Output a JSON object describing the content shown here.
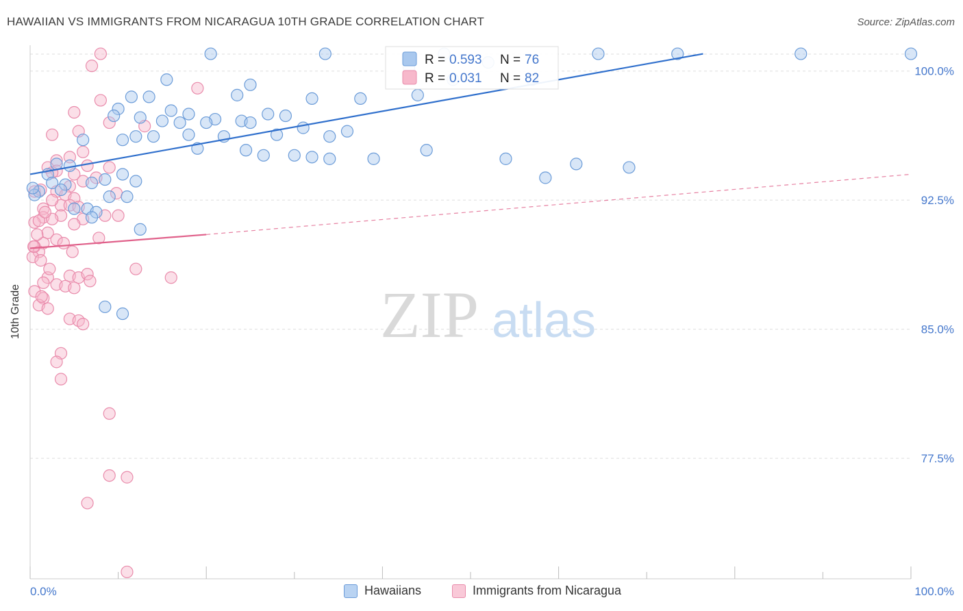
{
  "header": {
    "title": "HAWAIIAN VS IMMIGRANTS FROM NICARAGUA 10TH GRADE CORRELATION CHART",
    "source": "Source: ZipAtlas.com"
  },
  "watermark": {
    "zip": "ZIP",
    "atlas": "atlas"
  },
  "colors": {
    "blue_fill": "#a9c8ee",
    "blue_stroke": "#6a9bd8",
    "blue_line": "#2f6fcc",
    "pink_fill": "#f7b8cb",
    "pink_stroke": "#e98bab",
    "pink_line": "#e0608a",
    "tick_text": "#4477cc",
    "grid": "#dddddd"
  },
  "legend": {
    "rows": [
      {
        "r_label": "R =",
        "r_value": "0.593",
        "n_label": "N =",
        "n_value": "76"
      },
      {
        "r_label": "R =",
        "r_value": "0.031",
        "n_label": "N =",
        "n_value": "82"
      }
    ]
  },
  "bottom_legend": [
    "Hawaiians",
    "Immigrants from Nicaragua"
  ],
  "chart_data": {
    "type": "scatter",
    "title": "HAWAIIAN VS IMMIGRANTS FROM NICARAGUA 10TH GRADE CORRELATION CHART",
    "xlabel": "",
    "ylabel": "10th Grade",
    "xlim": [
      0,
      100
    ],
    "ylim": [
      70.5,
      101.5
    ],
    "x_tick_labels": [
      "0.0%",
      "100.0%"
    ],
    "y_ticks": [
      77.5,
      85.0,
      92.5,
      100.0
    ],
    "y_tick_labels": [
      "77.5%",
      "85.0%",
      "92.5%",
      "100.0%"
    ],
    "grid": true,
    "legend_position": "top-center",
    "series": [
      {
        "name": "Hawaiians",
        "color": "#a9c8ee",
        "R": 0.593,
        "N": 76,
        "trend": {
          "x": [
            0,
            76.4
          ],
          "y": [
            94.0,
            101.0
          ],
          "style": "solid"
        },
        "points": [
          [
            20.5,
            101
          ],
          [
            33.5,
            101
          ],
          [
            47,
            101
          ],
          [
            64.5,
            101
          ],
          [
            73.5,
            101
          ],
          [
            87.5,
            101
          ],
          [
            100,
            101
          ],
          [
            43,
            100.2
          ],
          [
            52,
            100.5
          ],
          [
            48,
            99.5
          ],
          [
            57,
            99.5
          ],
          [
            15.5,
            99.5
          ],
          [
            25,
            99.2
          ],
          [
            11.5,
            98.5
          ],
          [
            13.5,
            98.5
          ],
          [
            23.5,
            98.6
          ],
          [
            37.5,
            98.4
          ],
          [
            44,
            98.6
          ],
          [
            32,
            98.4
          ],
          [
            10,
            97.8
          ],
          [
            16,
            97.7
          ],
          [
            18,
            97.5
          ],
          [
            9.5,
            97.4
          ],
          [
            12.5,
            97.3
          ],
          [
            15,
            97.1
          ],
          [
            21,
            97.2
          ],
          [
            24,
            97.1
          ],
          [
            27,
            97.5
          ],
          [
            29,
            97.4
          ],
          [
            25,
            97
          ],
          [
            20,
            97
          ],
          [
            17,
            97
          ],
          [
            31,
            96.7
          ],
          [
            22,
            96.2
          ],
          [
            18,
            96.3
          ],
          [
            14,
            96.2
          ],
          [
            12,
            96.2
          ],
          [
            28,
            96.3
          ],
          [
            34,
            96.2
          ],
          [
            36,
            96.5
          ],
          [
            6,
            96.0
          ],
          [
            10.5,
            96
          ],
          [
            19,
            95.5
          ],
          [
            24.5,
            95.4
          ],
          [
            26.5,
            95.1
          ],
          [
            30,
            95.1
          ],
          [
            32,
            95
          ],
          [
            34,
            94.9
          ],
          [
            39,
            94.9
          ],
          [
            45,
            95.4
          ],
          [
            54,
            94.9
          ],
          [
            62,
            94.6
          ],
          [
            68,
            94.4
          ],
          [
            58.5,
            93.8
          ],
          [
            3,
            94.6
          ],
          [
            4.5,
            94.5
          ],
          [
            8.5,
            93.7
          ],
          [
            10.5,
            94.0
          ],
          [
            2,
            94
          ],
          [
            2.5,
            93.5
          ],
          [
            4,
            93.4
          ],
          [
            7,
            93.5
          ],
          [
            12,
            93.6
          ],
          [
            3.5,
            93.1
          ],
          [
            1,
            93.0
          ],
          [
            0.5,
            92.8
          ],
          [
            9,
            92.7
          ],
          [
            11,
            92.7
          ],
          [
            5,
            92.0
          ],
          [
            6.5,
            92
          ],
          [
            7.5,
            91.8
          ],
          [
            7,
            91.5
          ],
          [
            12.5,
            90.8
          ],
          [
            8.5,
            86.3
          ],
          [
            10.5,
            85.9
          ],
          [
            0.3,
            93.2
          ]
        ]
      },
      {
        "name": "Immigrants from Nicaragua",
        "color": "#f7b8cb",
        "R": 0.031,
        "N": 82,
        "trend": {
          "x": [
            0,
            20
          ],
          "y": [
            89.7,
            90.5
          ],
          "style": "solid"
        },
        "trend_ext": {
          "x": [
            20,
            100
          ],
          "y": [
            90.5,
            94.0
          ],
          "style": "dashed"
        },
        "points": [
          [
            8,
            101
          ],
          [
            7,
            100.3
          ],
          [
            19,
            99
          ],
          [
            8,
            98.3
          ],
          [
            5,
            97.6
          ],
          [
            9,
            97.0
          ],
          [
            2.5,
            96.3
          ],
          [
            5.5,
            96.5
          ],
          [
            6,
            95.3
          ],
          [
            3,
            94.8
          ],
          [
            4.5,
            95
          ],
          [
            2,
            94.4
          ],
          [
            3,
            94.2
          ],
          [
            5,
            94.0
          ],
          [
            9,
            94.4
          ],
          [
            2.5,
            94.1
          ],
          [
            4.5,
            93.3
          ],
          [
            3,
            93.0
          ],
          [
            6,
            93.6
          ],
          [
            0.5,
            93.0
          ],
          [
            4,
            92.8
          ],
          [
            5,
            92.6
          ],
          [
            3.5,
            92.2
          ],
          [
            4.5,
            92.2
          ],
          [
            1.5,
            92.0
          ],
          [
            5.5,
            92.1
          ],
          [
            3.5,
            91.6
          ],
          [
            1.5,
            91.5
          ],
          [
            2.5,
            91.4
          ],
          [
            0.5,
            91.2
          ],
          [
            1,
            91.3
          ],
          [
            6,
            91.4
          ],
          [
            8.5,
            91.6
          ],
          [
            10,
            91.6
          ],
          [
            5,
            91.1
          ],
          [
            2,
            90.6
          ],
          [
            3,
            90.2
          ],
          [
            1.5,
            90.0
          ],
          [
            0.5,
            89.8
          ],
          [
            1,
            89.5
          ],
          [
            0.3,
            89.2
          ],
          [
            1.2,
            89.0
          ],
          [
            12,
            88.5
          ],
          [
            4.5,
            88.1
          ],
          [
            5.5,
            88.0
          ],
          [
            6.5,
            88.2
          ],
          [
            2,
            88.0
          ],
          [
            1.5,
            87.7
          ],
          [
            3,
            87.6
          ],
          [
            4,
            87.5
          ],
          [
            5,
            87.4
          ],
          [
            16,
            88.0
          ],
          [
            0.5,
            87.2
          ],
          [
            1.5,
            86.8
          ],
          [
            1,
            86.4
          ],
          [
            2,
            86.2
          ],
          [
            4.5,
            85.6
          ],
          [
            5.5,
            85.5
          ],
          [
            6,
            85.3
          ],
          [
            3.5,
            83.6
          ],
          [
            3,
            83.1
          ],
          [
            3.5,
            82.1
          ],
          [
            9,
            80.1
          ],
          [
            9,
            76.5
          ],
          [
            11,
            76.4
          ],
          [
            6.5,
            74.9
          ],
          [
            11,
            70.9
          ],
          [
            0.4,
            89.8
          ],
          [
            1.2,
            93.1
          ],
          [
            7.5,
            93.8
          ],
          [
            6.5,
            94.5
          ],
          [
            2.5,
            92.5
          ],
          [
            0.8,
            90.5
          ],
          [
            1.7,
            91.8
          ],
          [
            3.8,
            90.0
          ],
          [
            4.8,
            89.5
          ],
          [
            2.2,
            88.5
          ],
          [
            6.8,
            87.8
          ],
          [
            1.3,
            86.9
          ],
          [
            7.8,
            90.3
          ],
          [
            9.8,
            92.9
          ],
          [
            13,
            96.8
          ]
        ]
      }
    ]
  }
}
